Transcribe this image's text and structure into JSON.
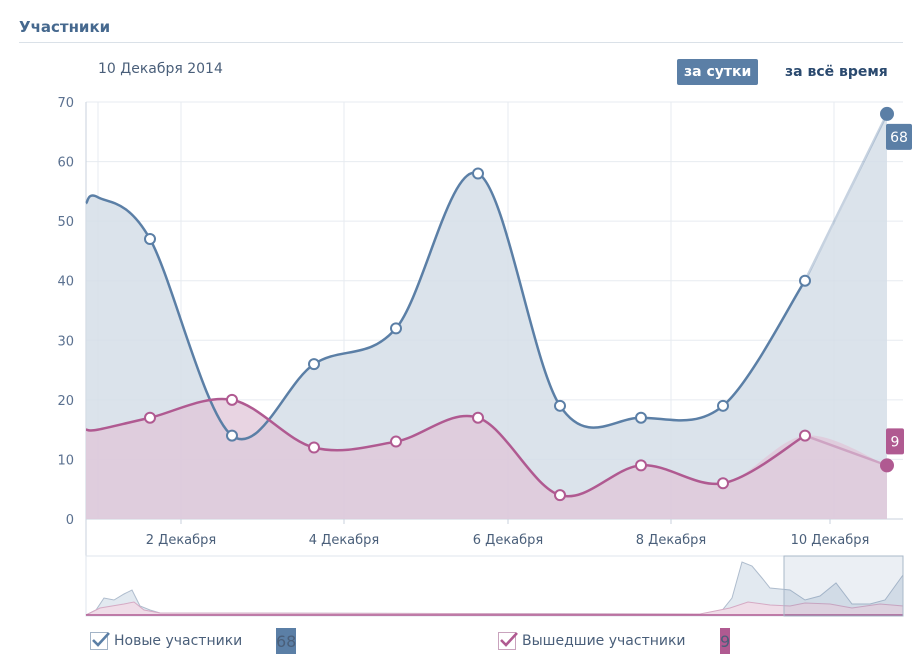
{
  "section": {
    "title": "Участники"
  },
  "period": {
    "date": "10 Декабря 2014"
  },
  "buttons": {
    "day": "за сутки",
    "all": "за всё время"
  },
  "colors": {
    "blue": "#5b7fa6",
    "blue_fill": "#d5dee8",
    "pink": "#b05a91",
    "pink_fill": "#e0c5d8"
  },
  "legend": {
    "new_label": "Новые участники",
    "new_value": "68",
    "left_label": "Вышедшие участники",
    "left_value": "9"
  },
  "chart_data": {
    "type": "area",
    "title": "",
    "xlabel": "",
    "ylabel": "",
    "ylim": [
      0,
      70
    ],
    "yticks": [
      "0",
      "10",
      "20",
      "30",
      "40",
      "50",
      "60",
      "70"
    ],
    "x_tick_labels": [
      "2 Декабря",
      "4 Декабря",
      "6 Декабря",
      "8 Декабря",
      "10 Декабря"
    ],
    "x": [
      0,
      1,
      2,
      3,
      4,
      5,
      6,
      7,
      8,
      9
    ],
    "series": [
      {
        "name": "Новые участники",
        "values": [
          47,
          14,
          26,
          32,
          58,
          19,
          17,
          19,
          40,
          68
        ]
      },
      {
        "name": "Вышедшие участники",
        "values": [
          17,
          20,
          12,
          13,
          17,
          4,
          9,
          6,
          14,
          9
        ]
      }
    ],
    "end_labels": [
      "68",
      "9"
    ],
    "grid": true,
    "legend": "bottom"
  }
}
